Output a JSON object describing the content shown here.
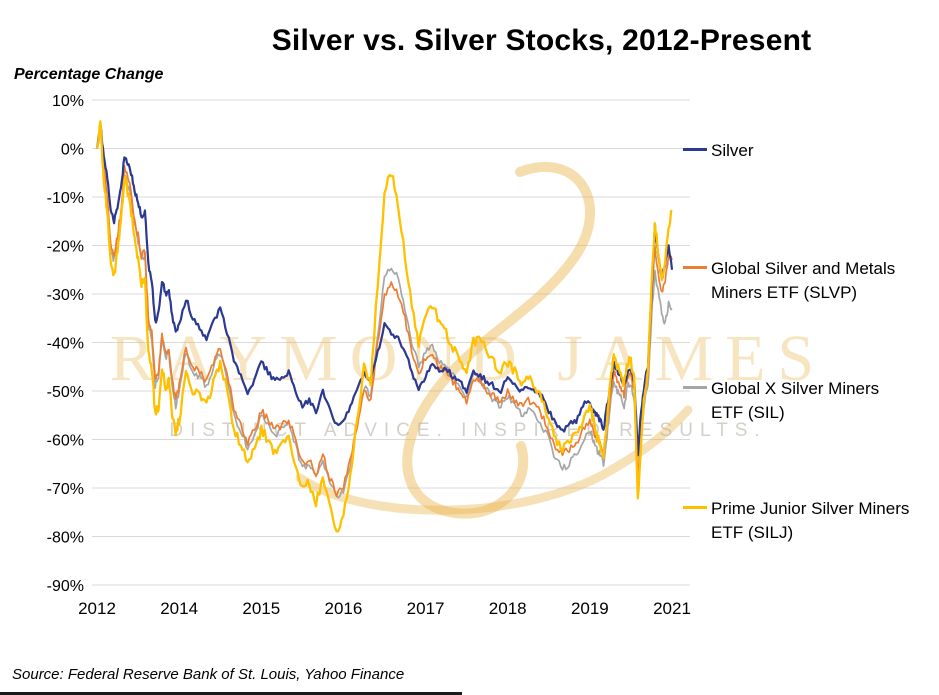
{
  "page": {
    "title": "Silver vs. Silver Stocks, 2012-Present",
    "y_axis_label": "Percentage Change",
    "source": "Source: Federal Reserve Bank of St. Louis, Yahoo Finance"
  },
  "watermark": {
    "brand": "RAYMOND JAMES",
    "tagline": "DISTINCT ADVICE. INSPIRED RESULTS.",
    "color": "#E9B44C"
  },
  "chart_data": {
    "type": "line",
    "title": "Silver vs. Silver Stocks, 2012-Present",
    "xlabel": "",
    "ylabel": "Percentage Change",
    "ylim": [
      -90,
      10
    ],
    "y_ticks": [
      10,
      0,
      -10,
      -20,
      -30,
      -40,
      -50,
      -60,
      -70,
      -80,
      -90
    ],
    "y_tick_suffix": "%",
    "x_tick_labels": [
      "2012",
      "2014",
      "2015",
      "2016",
      "2017",
      "2018",
      "2019",
      "2021"
    ],
    "x_start_year": 2012,
    "x_interval": "monthly (values are one point per month, Jan 2012 through Jan 2021)",
    "grid": true,
    "legend_position": "right",
    "gridline_color": "#D9D9D9",
    "series": [
      {
        "name": "Silver",
        "color": "#2B3990",
        "values": [
          0,
          5,
          -2,
          -6,
          -13,
          -15,
          -12,
          -8,
          -2,
          -3,
          -5,
          -9,
          -11,
          -14,
          -13,
          -24,
          -27,
          -36,
          -34,
          -27,
          -30,
          -29,
          -35,
          -38,
          -36,
          -31,
          -35,
          -37,
          -39,
          -36,
          -33,
          -38,
          -44,
          -47,
          -51,
          -48,
          -44,
          -46,
          -48,
          -47,
          -46,
          -50,
          -53,
          -52,
          -54,
          -50,
          -54,
          -57,
          -56,
          -53,
          -50,
          -46,
          -48,
          -42,
          -36,
          -38,
          -39,
          -42,
          -46,
          -50,
          -47,
          -44,
          -46,
          -45,
          -47,
          -48,
          -50,
          -46,
          -47,
          -48,
          -49,
          -50,
          -47,
          -49,
          -50,
          -49,
          -50,
          -51,
          -54,
          -57,
          -58,
          -57,
          -56,
          -53,
          -52,
          -54,
          -55,
          -56,
          -58,
          -53,
          -49,
          -44,
          -46,
          -47,
          -49,
          -46,
          -46,
          -48,
          -63,
          -54,
          -48,
          -45,
          -30,
          -16,
          -22,
          -27,
          -24,
          -20,
          -25
        ]
      },
      {
        "name": "Global Silver and Metals Miners ETF (SLVP)",
        "color": "#ED7D31",
        "values": [
          0,
          5,
          -4,
          -10,
          -20,
          -22,
          -18,
          -13,
          -4,
          -6,
          -9,
          -15,
          -18,
          -22,
          -21,
          -35,
          -38,
          -48,
          -46,
          -38,
          -42,
          -41,
          -48,
          -52,
          -49,
          -41,
          -45,
          -46,
          -48,
          -44,
          -41,
          -46,
          -54,
          -57,
          -61,
          -58,
          -54,
          -56,
          -58,
          -57,
          -56,
          -60,
          -65,
          -64,
          -67,
          -63,
          -68,
          -71,
          -70,
          -64,
          -57,
          -50,
          -52,
          -40,
          -30,
          -28,
          -30,
          -35,
          -42,
          -47,
          -43,
          -42,
          -45,
          -46,
          -48,
          -50,
          -52,
          -48,
          -48,
          -50,
          -51,
          -52,
          -50,
          -52,
          -53,
          -52,
          -53,
          -55,
          -58,
          -62,
          -63,
          -62,
          -61,
          -58,
          -56,
          -58,
          -60,
          -61,
          -63,
          -57,
          -51,
          -46,
          -48,
          -49,
          -51,
          -47,
          -47,
          -50,
          -68,
          -58,
          -50,
          -47,
          -32,
          -20,
          -26,
          -30,
          -27,
          -22,
          -23
        ]
      },
      {
        "name": "Global X Silver Miners ETF (SIL)",
        "color": "#A6A6A6",
        "values": [
          0,
          4,
          -5,
          -11,
          -21,
          -23,
          -19,
          -14,
          -5,
          -7,
          -10,
          -16,
          -19,
          -23,
          -22,
          -36,
          -39,
          -49,
          -47,
          -39,
          -43,
          -42,
          -49,
          -53,
          -50,
          -42,
          -46,
          -47,
          -49,
          -45,
          -42,
          -47,
          -55,
          -58,
          -62,
          -59,
          -55,
          -57,
          -59,
          -58,
          -57,
          -61,
          -66,
          -65,
          -68,
          -64,
          -69,
          -72,
          -71,
          -65,
          -57,
          -49,
          -51,
          -38,
          -27,
          -24,
          -27,
          -33,
          -40,
          -45,
          -42,
          -41,
          -44,
          -45,
          -47,
          -49,
          -51,
          -47,
          -48,
          -50,
          -52,
          -53,
          -51,
          -53,
          -55,
          -54,
          -55,
          -57,
          -60,
          -64,
          -66,
          -65,
          -63,
          -60,
          -58,
          -60,
          -62,
          -63,
          -65,
          -59,
          -53,
          -48,
          -50,
          -51,
          -53,
          -49,
          -49,
          -52,
          -69,
          -60,
          -52,
          -49,
          -35,
          -25,
          -30,
          -34,
          -36,
          -32,
          -33
        ]
      },
      {
        "name": "Prime Junior Silver Miners ETF (SILJ)",
        "color": "#FFC000",
        "values": [
          0,
          5,
          -6,
          -13,
          -24,
          -26,
          -21,
          -15,
          -6,
          -9,
          -13,
          -19,
          -23,
          -28,
          -27,
          -42,
          -45,
          -55,
          -53,
          -45,
          -49,
          -48,
          -55,
          -59,
          -56,
          -46,
          -50,
          -51,
          -53,
          -48,
          -44,
          -50,
          -58,
          -61,
          -65,
          -62,
          -58,
          -60,
          -63,
          -61,
          -60,
          -65,
          -70,
          -69,
          -73,
          -68,
          -74,
          -79,
          -76,
          -67,
          -56,
          -45,
          -48,
          -28,
          -9,
          -5,
          -12,
          -22,
          -32,
          -40,
          -34,
          -32,
          -36,
          -38,
          -41,
          -43,
          -46,
          -40,
          -39,
          -42,
          -44,
          -46,
          -44,
          -46,
          -49,
          -47,
          -49,
          -52,
          -56,
          -60,
          -62,
          -60,
          -59,
          -56,
          -53,
          -56,
          -59,
          -61,
          -63,
          -56,
          -48,
          -42,
          -45,
          -46,
          -49,
          -44,
          -44,
          -48,
          -73,
          -60,
          -50,
          -46,
          -28,
          -15,
          -22,
          -27,
          -23,
          -16,
          -13
        ]
      }
    ]
  }
}
